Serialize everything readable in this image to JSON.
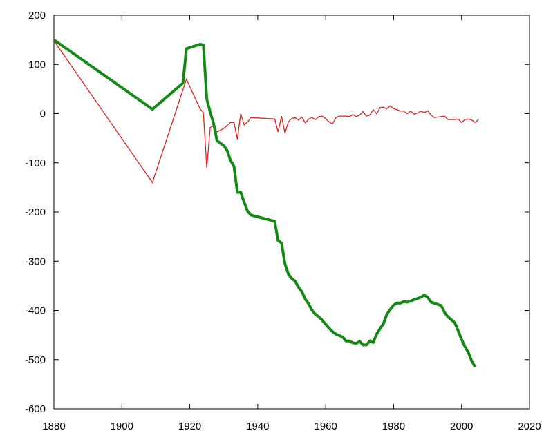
{
  "chart_data": {
    "type": "line",
    "title": "",
    "xlabel": "",
    "ylabel": "",
    "xlim": [
      1880,
      2020
    ],
    "ylim": [
      -600,
      200
    ],
    "x_ticks": [
      "1880",
      "1900",
      "1920",
      "1940",
      "1960",
      "1980",
      "2000",
      "2020"
    ],
    "y_ticks": [
      "200",
      "100",
      "0",
      "-100",
      "-200",
      "-300",
      "-400",
      "-500",
      "-600"
    ],
    "x_tick_values": [
      1880,
      1900,
      1920,
      1940,
      1960,
      1980,
      2000,
      2020
    ],
    "y_tick_values": [
      200,
      100,
      0,
      -100,
      -200,
      -300,
      -400,
      -500,
      -600
    ],
    "grid": false,
    "legend": "none",
    "series": [
      {
        "color": "#e01e1e",
        "line": "thin",
        "points": [
          [
            1880,
            148
          ],
          [
            1909,
            -140
          ],
          [
            1919,
            70
          ],
          [
            1923,
            10
          ],
          [
            1924,
            2
          ],
          [
            1925,
            -110
          ],
          [
            1926,
            -28
          ],
          [
            1927,
            -25
          ],
          [
            1928,
            -37
          ],
          [
            1930,
            -30
          ],
          [
            1932,
            -18
          ],
          [
            1933,
            -18
          ],
          [
            1934,
            -52
          ],
          [
            1935,
            0
          ],
          [
            1936,
            -23
          ],
          [
            1937,
            -17
          ],
          [
            1938,
            -8
          ],
          [
            1945,
            -11
          ],
          [
            1946,
            -37
          ],
          [
            1947,
            -5
          ],
          [
            1948,
            -40
          ],
          [
            1949,
            -17
          ],
          [
            1950,
            -10
          ],
          [
            1951,
            -8
          ],
          [
            1952,
            -13
          ],
          [
            1953,
            -7
          ],
          [
            1954,
            -19
          ],
          [
            1955,
            -11
          ],
          [
            1956,
            -8
          ],
          [
            1957,
            -12
          ],
          [
            1958,
            -6
          ],
          [
            1959,
            -5
          ],
          [
            1960,
            -10
          ],
          [
            1961,
            -17
          ],
          [
            1962,
            -21
          ],
          [
            1963,
            -8
          ],
          [
            1964,
            -5
          ],
          [
            1966,
            -5
          ],
          [
            1967,
            -6
          ],
          [
            1968,
            -2
          ],
          [
            1969,
            -6
          ],
          [
            1970,
            -3
          ],
          [
            1971,
            4
          ],
          [
            1972,
            -5
          ],
          [
            1973,
            -3
          ],
          [
            1974,
            8
          ],
          [
            1975,
            0
          ],
          [
            1976,
            12
          ],
          [
            1977,
            13
          ],
          [
            1978,
            10
          ],
          [
            1979,
            16
          ],
          [
            1980,
            10
          ],
          [
            1981,
            8
          ],
          [
            1982,
            5
          ],
          [
            1983,
            5
          ],
          [
            1984,
            0
          ],
          [
            1985,
            5
          ],
          [
            1986,
            -1
          ],
          [
            1987,
            1
          ],
          [
            1988,
            5
          ],
          [
            1989,
            2
          ],
          [
            1990,
            6
          ],
          [
            1991,
            -3
          ],
          [
            1992,
            -8
          ],
          [
            1993,
            -7
          ],
          [
            1995,
            -5
          ],
          [
            1996,
            -12
          ],
          [
            1998,
            -12
          ],
          [
            1999,
            -11
          ],
          [
            2000,
            -18
          ],
          [
            2001,
            -12
          ],
          [
            2002,
            -11
          ],
          [
            2003,
            -13
          ],
          [
            2004,
            -18
          ],
          [
            2005,
            -12
          ]
        ]
      },
      {
        "color": "#138a13",
        "line": "thick",
        "points": [
          [
            1880,
            150
          ],
          [
            1909,
            9
          ],
          [
            1918,
            62
          ],
          [
            1919,
            132
          ],
          [
            1923,
            141
          ],
          [
            1924,
            140
          ],
          [
            1925,
            30
          ],
          [
            1926,
            3
          ],
          [
            1927,
            -20
          ],
          [
            1928,
            -55
          ],
          [
            1930,
            -65
          ],
          [
            1931,
            -75
          ],
          [
            1932,
            -95
          ],
          [
            1933,
            -107
          ],
          [
            1934,
            -160
          ],
          [
            1935,
            -160
          ],
          [
            1936,
            -180
          ],
          [
            1937,
            -198
          ],
          [
            1938,
            -206
          ],
          [
            1945,
            -219
          ],
          [
            1946,
            -258
          ],
          [
            1947,
            -263
          ],
          [
            1948,
            -305
          ],
          [
            1949,
            -326
          ],
          [
            1950,
            -335
          ],
          [
            1951,
            -340
          ],
          [
            1952,
            -353
          ],
          [
            1953,
            -362
          ],
          [
            1954,
            -377
          ],
          [
            1955,
            -387
          ],
          [
            1956,
            -400
          ],
          [
            1957,
            -408
          ],
          [
            1958,
            -413
          ],
          [
            1959,
            -420
          ],
          [
            1960,
            -428
          ],
          [
            1961,
            -436
          ],
          [
            1962,
            -443
          ],
          [
            1963,
            -448
          ],
          [
            1964,
            -451
          ],
          [
            1965,
            -454
          ],
          [
            1966,
            -462
          ],
          [
            1967,
            -462
          ],
          [
            1968,
            -466
          ],
          [
            1969,
            -467
          ],
          [
            1970,
            -463
          ],
          [
            1971,
            -470
          ],
          [
            1972,
            -470
          ],
          [
            1973,
            -462
          ],
          [
            1974,
            -465
          ],
          [
            1975,
            -448
          ],
          [
            1976,
            -437
          ],
          [
            1977,
            -427
          ],
          [
            1978,
            -408
          ],
          [
            1979,
            -398
          ],
          [
            1980,
            -389
          ],
          [
            1981,
            -385
          ],
          [
            1982,
            -385
          ],
          [
            1983,
            -382
          ],
          [
            1984,
            -383
          ],
          [
            1985,
            -381
          ],
          [
            1986,
            -378
          ],
          [
            1987,
            -376
          ],
          [
            1988,
            -373
          ],
          [
            1989,
            -369
          ],
          [
            1990,
            -373
          ],
          [
            1991,
            -383
          ],
          [
            1994,
            -390
          ],
          [
            1995,
            -404
          ],
          [
            1996,
            -413
          ],
          [
            1997,
            -419
          ],
          [
            1998,
            -425
          ],
          [
            1999,
            -441
          ],
          [
            2000,
            -459
          ],
          [
            2001,
            -474
          ],
          [
            2002,
            -485
          ],
          [
            2003,
            -503
          ],
          [
            2004,
            -515
          ]
        ]
      }
    ]
  }
}
